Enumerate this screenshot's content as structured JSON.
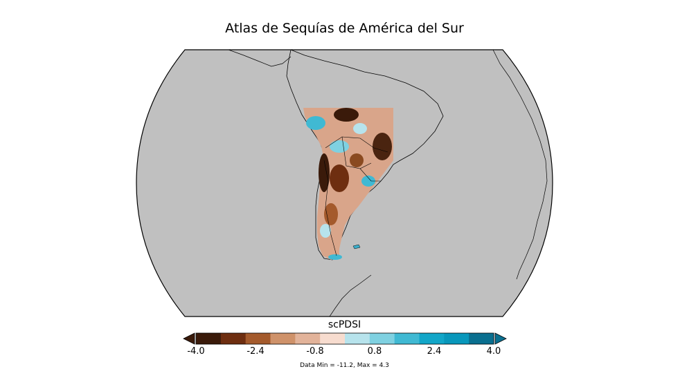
{
  "title": "Atlas de Sequías de América del Sur",
  "colorbar": {
    "label": "scPDSI",
    "ticks": [
      "-4.0",
      "-2.4",
      "-0.8",
      "0.8",
      "2.4",
      "4.0"
    ],
    "colors": [
      "#3a1a0a",
      "#6e2e10",
      "#a45a2c",
      "#cf926a",
      "#e2b39a",
      "#f7dccf",
      "#b7e3ec",
      "#7fd1e1",
      "#40b9d3",
      "#12a6c8",
      "#0897bb",
      "#0a6f8f"
    ],
    "extend_low_color": "#3a1a0a",
    "extend_high_color": "#0a6f8f"
  },
  "data_range": "Data Min = -11.2, Max = 4.3",
  "colors": {
    "ocean": "#c0c0c0",
    "land_no_data": "#c0c0c0",
    "coast": "#000000"
  }
}
